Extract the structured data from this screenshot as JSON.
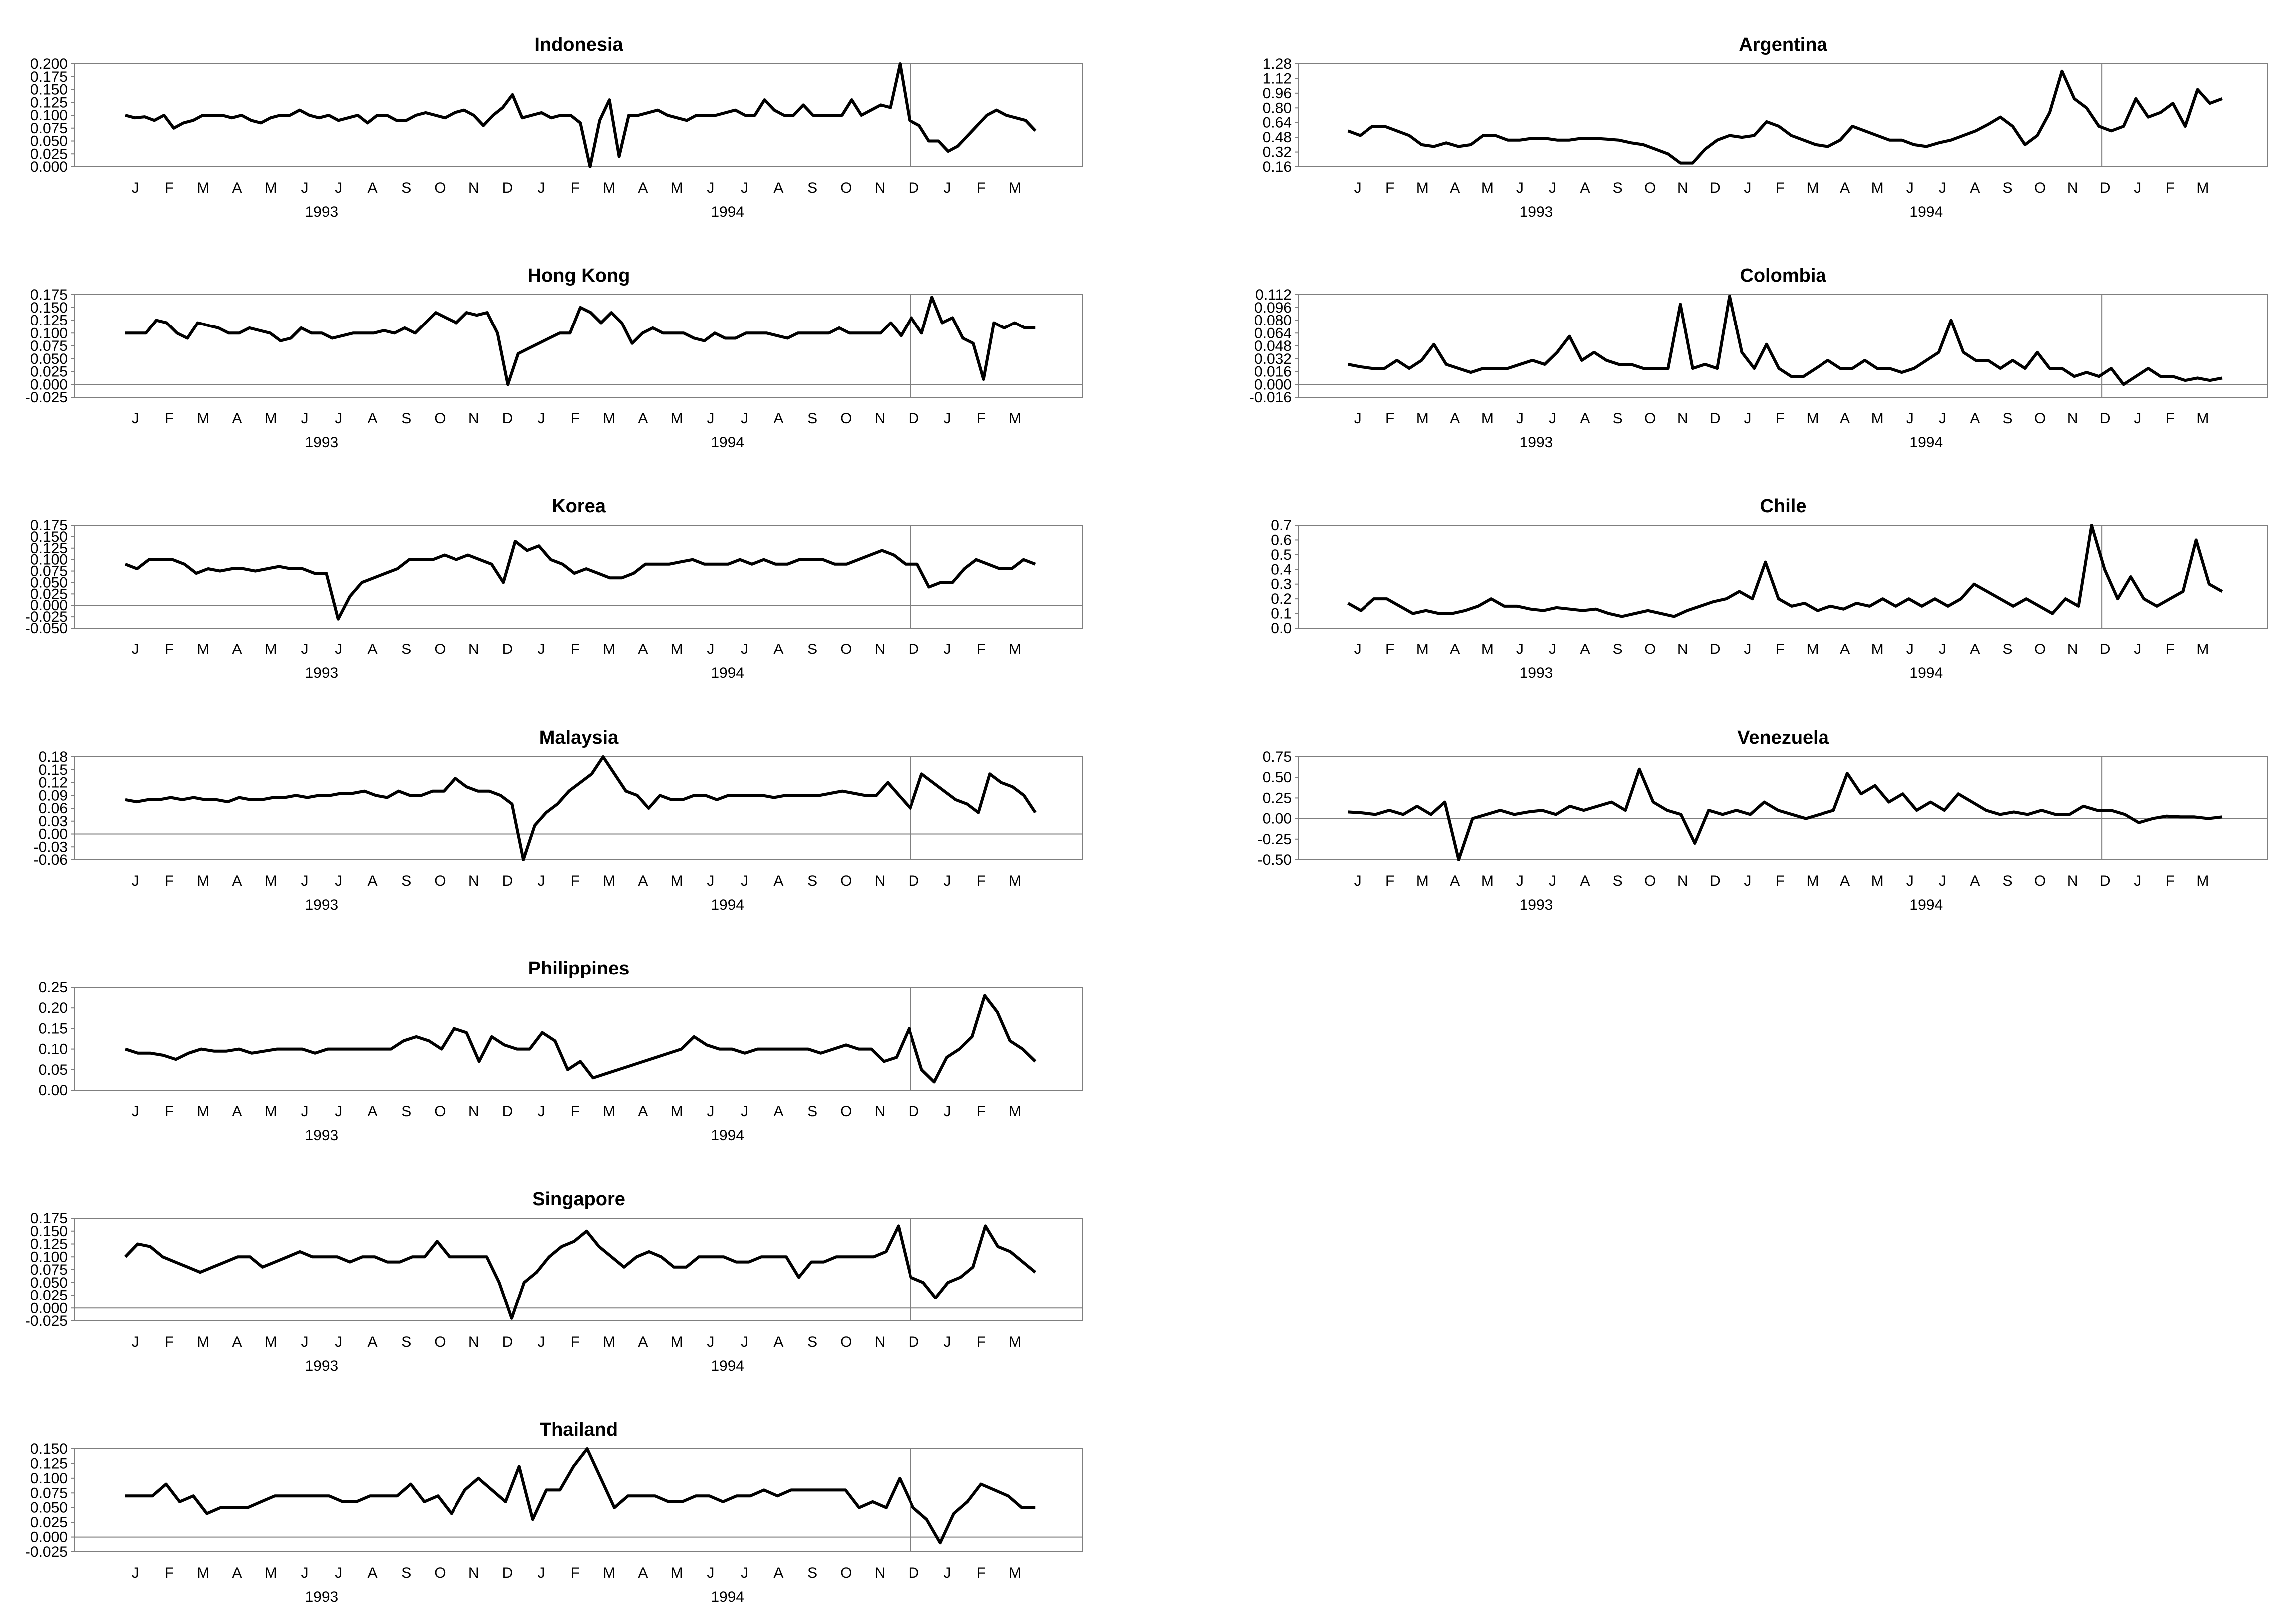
{
  "chart_data": [
    {
      "type": "line",
      "title": "Indonesia",
      "ylim": [
        0,
        0.2
      ],
      "yticks": [
        "0.000",
        "0.025",
        "0.050",
        "0.075",
        "0.100",
        "0.125",
        "0.150",
        "0.175",
        "0.200"
      ],
      "months": [
        "J",
        "F",
        "M",
        "A",
        "M",
        "J",
        "J",
        "A",
        "S",
        "O",
        "N",
        "D",
        "J",
        "F",
        "M",
        "A",
        "M",
        "J",
        "J",
        "A",
        "S",
        "O",
        "N",
        "D",
        "J",
        "F",
        "M"
      ],
      "years": [
        "1993",
        "1994"
      ],
      "values": [
        0.1,
        0.095,
        0.097,
        0.09,
        0.1,
        0.075,
        0.085,
        0.09,
        0.1,
        0.1,
        0.1,
        0.095,
        0.1,
        0.09,
        0.085,
        0.095,
        0.1,
        0.1,
        0.11,
        0.1,
        0.095,
        0.1,
        0.09,
        0.095,
        0.1,
        0.085,
        0.1,
        0.1,
        0.09,
        0.09,
        0.1,
        0.105,
        0.1,
        0.095,
        0.105,
        0.11,
        0.1,
        0.08,
        0.1,
        0.115,
        0.14,
        0.095,
        0.1,
        0.105,
        0.095,
        0.1,
        0.1,
        0.085,
        0.0,
        0.09,
        0.13,
        0.02,
        0.1,
        0.1,
        0.105,
        0.11,
        0.1,
        0.095,
        0.09,
        0.1,
        0.1,
        0.1,
        0.105,
        0.11,
        0.1,
        0.1,
        0.13,
        0.11,
        0.1,
        0.1,
        0.12,
        0.1,
        0.1,
        0.1,
        0.1,
        0.13,
        0.1,
        0.11,
        0.12,
        0.115,
        0.2,
        0.09,
        0.08,
        0.05,
        0.05,
        0.03,
        0.04,
        0.06,
        0.08,
        0.1,
        0.11,
        0.1,
        0.095,
        0.09,
        0.07
      ]
    },
    {
      "type": "line",
      "title": "Hong Kong",
      "ylim": [
        -0.025,
        0.175
      ],
      "yticks": [
        "-0.025",
        "0.000",
        "0.025",
        "0.050",
        "0.075",
        "0.100",
        "0.125",
        "0.150",
        "0.175"
      ],
      "months": [
        "J",
        "F",
        "M",
        "A",
        "M",
        "J",
        "J",
        "A",
        "S",
        "O",
        "N",
        "D",
        "J",
        "F",
        "M",
        "A",
        "M",
        "J",
        "J",
        "A",
        "S",
        "O",
        "N",
        "D",
        "J",
        "F",
        "M"
      ],
      "years": [
        "1993",
        "1994"
      ],
      "values": [
        0.1,
        0.1,
        0.1,
        0.125,
        0.12,
        0.1,
        0.09,
        0.12,
        0.115,
        0.11,
        0.1,
        0.1,
        0.11,
        0.105,
        0.1,
        0.085,
        0.09,
        0.11,
        0.1,
        0.1,
        0.09,
        0.095,
        0.1,
        0.1,
        0.1,
        0.105,
        0.1,
        0.11,
        0.1,
        0.12,
        0.14,
        0.13,
        0.12,
        0.14,
        0.135,
        0.14,
        0.1,
        0.0,
        0.06,
        0.07,
        0.08,
        0.09,
        0.1,
        0.1,
        0.15,
        0.14,
        0.12,
        0.14,
        0.12,
        0.08,
        0.1,
        0.11,
        0.1,
        0.1,
        0.1,
        0.09,
        0.085,
        0.1,
        0.09,
        0.09,
        0.1,
        0.1,
        0.1,
        0.095,
        0.09,
        0.1,
        0.1,
        0.1,
        0.1,
        0.11,
        0.1,
        0.1,
        0.1,
        0.1,
        0.12,
        0.095,
        0.13,
        0.1,
        0.17,
        0.12,
        0.13,
        0.09,
        0.08,
        0.01,
        0.12,
        0.11,
        0.12,
        0.11,
        0.11
      ]
    },
    {
      "type": "line",
      "title": "Korea",
      "ylim": [
        -0.05,
        0.175
      ],
      "yticks": [
        "-0.050",
        "-0.025",
        "0.000",
        "0.025",
        "0.050",
        "0.075",
        "0.100",
        "0.125",
        "0.150",
        "0.175"
      ],
      "months": [
        "J",
        "F",
        "M",
        "A",
        "M",
        "J",
        "J",
        "A",
        "S",
        "O",
        "N",
        "D",
        "J",
        "F",
        "M",
        "A",
        "M",
        "J",
        "J",
        "A",
        "S",
        "O",
        "N",
        "D",
        "J",
        "F",
        "M"
      ],
      "years": [
        "1993",
        "1994"
      ],
      "values": [
        0.09,
        0.08,
        0.1,
        0.1,
        0.1,
        0.09,
        0.07,
        0.08,
        0.075,
        0.08,
        0.08,
        0.075,
        0.08,
        0.085,
        0.08,
        0.08,
        0.07,
        0.07,
        -0.03,
        0.02,
        0.05,
        0.06,
        0.07,
        0.08,
        0.1,
        0.1,
        0.1,
        0.11,
        0.1,
        0.11,
        0.1,
        0.09,
        0.05,
        0.14,
        0.12,
        0.13,
        0.1,
        0.09,
        0.07,
        0.08,
        0.07,
        0.06,
        0.06,
        0.07,
        0.09,
        0.09,
        0.09,
        0.095,
        0.1,
        0.09,
        0.09,
        0.09,
        0.1,
        0.09,
        0.1,
        0.09,
        0.09,
        0.1,
        0.1,
        0.1,
        0.09,
        0.09,
        0.1,
        0.11,
        0.12,
        0.11,
        0.09,
        0.09,
        0.04,
        0.05,
        0.05,
        0.08,
        0.1,
        0.09,
        0.08,
        0.08,
        0.1,
        0.09
      ]
    },
    {
      "type": "line",
      "title": "Malaysia",
      "ylim": [
        -0.06,
        0.18
      ],
      "yticks": [
        "-0.06",
        "-0.03",
        "0.00",
        "0.03",
        "0.06",
        "0.09",
        "0.12",
        "0.15",
        "0.18"
      ],
      "months": [
        "J",
        "F",
        "M",
        "A",
        "M",
        "J",
        "J",
        "A",
        "S",
        "O",
        "N",
        "D",
        "J",
        "F",
        "M",
        "A",
        "M",
        "J",
        "J",
        "A",
        "S",
        "O",
        "N",
        "D",
        "J",
        "F",
        "M"
      ],
      "years": [
        "1993",
        "1994"
      ],
      "values": [
        0.08,
        0.075,
        0.08,
        0.08,
        0.085,
        0.08,
        0.085,
        0.08,
        0.08,
        0.075,
        0.085,
        0.08,
        0.08,
        0.085,
        0.085,
        0.09,
        0.085,
        0.09,
        0.09,
        0.095,
        0.095,
        0.1,
        0.09,
        0.085,
        0.1,
        0.09,
        0.09,
        0.1,
        0.1,
        0.13,
        0.11,
        0.1,
        0.1,
        0.09,
        0.07,
        -0.06,
        0.02,
        0.05,
        0.07,
        0.1,
        0.12,
        0.14,
        0.18,
        0.14,
        0.1,
        0.09,
        0.06,
        0.09,
        0.08,
        0.08,
        0.09,
        0.09,
        0.08,
        0.09,
        0.09,
        0.09,
        0.09,
        0.085,
        0.09,
        0.09,
        0.09,
        0.09,
        0.095,
        0.1,
        0.095,
        0.09,
        0.09,
        0.12,
        0.09,
        0.06,
        0.14,
        0.12,
        0.1,
        0.08,
        0.07,
        0.05,
        0.14,
        0.12,
        0.11,
        0.09,
        0.05
      ]
    },
    {
      "type": "line",
      "title": "Philippines",
      "ylim": [
        0,
        0.25
      ],
      "yticks": [
        "0.00",
        "0.05",
        "0.10",
        "0.15",
        "0.20",
        "0.25"
      ],
      "months": [
        "J",
        "F",
        "M",
        "A",
        "M",
        "J",
        "J",
        "A",
        "S",
        "O",
        "N",
        "D",
        "J",
        "F",
        "M",
        "A",
        "M",
        "J",
        "J",
        "A",
        "S",
        "O",
        "N",
        "D",
        "J",
        "F",
        "M"
      ],
      "years": [
        "1993",
        "1994"
      ],
      "values": [
        0.1,
        0.09,
        0.09,
        0.085,
        0.075,
        0.09,
        0.1,
        0.095,
        0.095,
        0.1,
        0.09,
        0.095,
        0.1,
        0.1,
        0.1,
        0.09,
        0.1,
        0.1,
        0.1,
        0.1,
        0.1,
        0.1,
        0.12,
        0.13,
        0.12,
        0.1,
        0.15,
        0.14,
        0.07,
        0.13,
        0.11,
        0.1,
        0.1,
        0.14,
        0.12,
        0.05,
        0.07,
        0.03,
        0.04,
        0.05,
        0.06,
        0.07,
        0.08,
        0.09,
        0.1,
        0.13,
        0.11,
        0.1,
        0.1,
        0.09,
        0.1,
        0.1,
        0.1,
        0.1,
        0.1,
        0.09,
        0.1,
        0.11,
        0.1,
        0.1,
        0.07,
        0.08,
        0.15,
        0.05,
        0.02,
        0.08,
        0.1,
        0.13,
        0.23,
        0.19,
        0.12,
        0.1,
        0.07
      ]
    },
    {
      "type": "line",
      "title": "Singapore",
      "ylim": [
        -0.025,
        0.175
      ],
      "yticks": [
        "-0.025",
        "0.000",
        "0.025",
        "0.050",
        "0.075",
        "0.100",
        "0.125",
        "0.150",
        "0.175"
      ],
      "months": [
        "J",
        "F",
        "M",
        "A",
        "M",
        "J",
        "J",
        "A",
        "S",
        "O",
        "N",
        "D",
        "J",
        "F",
        "M",
        "A",
        "M",
        "J",
        "J",
        "A",
        "S",
        "O",
        "N",
        "D",
        "J",
        "F",
        "M"
      ],
      "years": [
        "1993",
        "1994"
      ],
      "values": [
        0.1,
        0.125,
        0.12,
        0.1,
        0.09,
        0.08,
        0.07,
        0.08,
        0.09,
        0.1,
        0.1,
        0.08,
        0.09,
        0.1,
        0.11,
        0.1,
        0.1,
        0.1,
        0.09,
        0.1,
        0.1,
        0.09,
        0.09,
        0.1,
        0.1,
        0.13,
        0.1,
        0.1,
        0.1,
        0.1,
        0.05,
        -0.02,
        0.05,
        0.07,
        0.1,
        0.12,
        0.13,
        0.15,
        0.12,
        0.1,
        0.08,
        0.1,
        0.11,
        0.1,
        0.08,
        0.08,
        0.1,
        0.1,
        0.1,
        0.09,
        0.09,
        0.1,
        0.1,
        0.1,
        0.06,
        0.09,
        0.09,
        0.1,
        0.1,
        0.1,
        0.1,
        0.11,
        0.16,
        0.06,
        0.05,
        0.02,
        0.05,
        0.06,
        0.08,
        0.16,
        0.12,
        0.11,
        0.09,
        0.07
      ]
    },
    {
      "type": "line",
      "title": "Thailand",
      "ylim": [
        -0.025,
        0.15
      ],
      "yticks": [
        "-0.025",
        "0.000",
        "0.025",
        "0.050",
        "0.075",
        "0.100",
        "0.125",
        "0.150"
      ],
      "months": [
        "J",
        "F",
        "M",
        "A",
        "M",
        "J",
        "J",
        "A",
        "S",
        "O",
        "N",
        "D",
        "J",
        "F",
        "M",
        "A",
        "M",
        "J",
        "J",
        "A",
        "S",
        "O",
        "N",
        "D",
        "J",
        "F",
        "M"
      ],
      "years": [
        "1993",
        "1994"
      ],
      "values": [
        0.07,
        0.07,
        0.07,
        0.09,
        0.06,
        0.07,
        0.04,
        0.05,
        0.05,
        0.05,
        0.06,
        0.07,
        0.07,
        0.07,
        0.07,
        0.07,
        0.06,
        0.06,
        0.07,
        0.07,
        0.07,
        0.09,
        0.06,
        0.07,
        0.04,
        0.08,
        0.1,
        0.08,
        0.06,
        0.12,
        0.03,
        0.08,
        0.08,
        0.12,
        0.15,
        0.1,
        0.05,
        0.07,
        0.07,
        0.07,
        0.06,
        0.06,
        0.07,
        0.07,
        0.06,
        0.07,
        0.07,
        0.08,
        0.07,
        0.08,
        0.08,
        0.08,
        0.08,
        0.08,
        0.05,
        0.06,
        0.05,
        0.1,
        0.05,
        0.03,
        -0.01,
        0.04,
        0.06,
        0.09,
        0.08,
        0.07,
        0.05,
        0.05
      ]
    },
    {
      "type": "line",
      "title": "Argentina",
      "ylim": [
        0.16,
        1.28
      ],
      "yticks": [
        "0.16",
        "0.32",
        "0.48",
        "0.64",
        "0.80",
        "0.96",
        "1.12",
        "1.28"
      ],
      "months": [
        "J",
        "F",
        "M",
        "A",
        "M",
        "J",
        "J",
        "A",
        "S",
        "O",
        "N",
        "D",
        "J",
        "F",
        "M",
        "A",
        "M",
        "J",
        "J",
        "A",
        "S",
        "O",
        "N",
        "D",
        "J",
        "F",
        "M"
      ],
      "years": [
        "1993",
        "1994"
      ],
      "values": [
        0.55,
        0.5,
        0.6,
        0.6,
        0.55,
        0.5,
        0.4,
        0.38,
        0.42,
        0.38,
        0.4,
        0.5,
        0.5,
        0.45,
        0.45,
        0.47,
        0.47,
        0.45,
        0.45,
        0.47,
        0.47,
        0.46,
        0.45,
        0.42,
        0.4,
        0.35,
        0.3,
        0.2,
        0.2,
        0.35,
        0.45,
        0.5,
        0.48,
        0.5,
        0.65,
        0.6,
        0.5,
        0.45,
        0.4,
        0.38,
        0.45,
        0.6,
        0.55,
        0.5,
        0.45,
        0.45,
        0.4,
        0.38,
        0.42,
        0.45,
        0.5,
        0.55,
        0.62,
        0.7,
        0.6,
        0.4,
        0.5,
        0.75,
        1.2,
        0.9,
        0.8,
        0.6,
        0.55,
        0.6,
        0.9,
        0.7,
        0.75,
        0.85,
        0.6,
        1.0,
        0.85,
        0.9
      ]
    },
    {
      "type": "line",
      "title": "Colombia",
      "ylim": [
        -0.016,
        0.112
      ],
      "yticks": [
        "-0.016",
        "0.000",
        "0.016",
        "0.032",
        "0.048",
        "0.064",
        "0.080",
        "0.096",
        "0.112"
      ],
      "months": [
        "J",
        "F",
        "M",
        "A",
        "M",
        "J",
        "J",
        "A",
        "S",
        "O",
        "N",
        "D",
        "J",
        "F",
        "M",
        "A",
        "M",
        "J",
        "J",
        "A",
        "S",
        "O",
        "N",
        "D",
        "J",
        "F",
        "M"
      ],
      "years": [
        "1993",
        "1994"
      ],
      "values": [
        0.025,
        0.022,
        0.02,
        0.02,
        0.03,
        0.02,
        0.03,
        0.05,
        0.025,
        0.02,
        0.015,
        0.02,
        0.02,
        0.02,
        0.025,
        0.03,
        0.025,
        0.04,
        0.06,
        0.03,
        0.04,
        0.03,
        0.025,
        0.025,
        0.02,
        0.02,
        0.02,
        0.1,
        0.02,
        0.025,
        0.02,
        0.11,
        0.04,
        0.02,
        0.05,
        0.02,
        0.01,
        0.01,
        0.02,
        0.03,
        0.02,
        0.02,
        0.03,
        0.02,
        0.02,
        0.015,
        0.02,
        0.03,
        0.04,
        0.08,
        0.04,
        0.03,
        0.03,
        0.02,
        0.03,
        0.02,
        0.04,
        0.02,
        0.02,
        0.01,
        0.015,
        0.01,
        0.02,
        0.0,
        0.01,
        0.02,
        0.01,
        0.01,
        0.005,
        0.008,
        0.005,
        0.008
      ]
    },
    {
      "type": "line",
      "title": "Chile",
      "ylim": [
        0,
        0.7
      ],
      "yticks": [
        "0.0",
        "0.1",
        "0.2",
        "0.3",
        "0.4",
        "0.5",
        "0.6",
        "0.7"
      ],
      "months": [
        "J",
        "F",
        "M",
        "A",
        "M",
        "J",
        "J",
        "A",
        "S",
        "O",
        "N",
        "D",
        "J",
        "F",
        "M",
        "A",
        "M",
        "J",
        "J",
        "A",
        "S",
        "O",
        "N",
        "D",
        "J",
        "F",
        "M"
      ],
      "years": [
        "1993",
        "1994"
      ],
      "values": [
        0.17,
        0.12,
        0.2,
        0.2,
        0.15,
        0.1,
        0.12,
        0.1,
        0.1,
        0.12,
        0.15,
        0.2,
        0.15,
        0.15,
        0.13,
        0.12,
        0.14,
        0.13,
        0.12,
        0.13,
        0.1,
        0.08,
        0.1,
        0.12,
        0.1,
        0.08,
        0.12,
        0.15,
        0.18,
        0.2,
        0.25,
        0.2,
        0.45,
        0.2,
        0.15,
        0.17,
        0.12,
        0.15,
        0.13,
        0.17,
        0.15,
        0.2,
        0.15,
        0.2,
        0.15,
        0.2,
        0.15,
        0.2,
        0.3,
        0.25,
        0.2,
        0.15,
        0.2,
        0.15,
        0.1,
        0.2,
        0.15,
        0.7,
        0.4,
        0.2,
        0.35,
        0.2,
        0.15,
        0.2,
        0.25,
        0.6,
        0.3,
        0.25
      ]
    },
    {
      "type": "line",
      "title": "Venezuela",
      "ylim": [
        -0.5,
        0.75
      ],
      "yticks": [
        "-0.50",
        "-0.25",
        "0.00",
        "0.25",
        "0.50",
        "0.75"
      ],
      "months": [
        "J",
        "F",
        "M",
        "A",
        "M",
        "J",
        "J",
        "A",
        "S",
        "O",
        "N",
        "D",
        "J",
        "F",
        "M",
        "A",
        "M",
        "J",
        "J",
        "A",
        "S",
        "O",
        "N",
        "D",
        "J",
        "F",
        "M"
      ],
      "years": [
        "1993",
        "1994"
      ],
      "values": [
        0.08,
        0.07,
        0.05,
        0.1,
        0.05,
        0.15,
        0.05,
        0.2,
        -0.5,
        0.0,
        0.05,
        0.1,
        0.05,
        0.08,
        0.1,
        0.05,
        0.15,
        0.1,
        0.15,
        0.2,
        0.1,
        0.6,
        0.2,
        0.1,
        0.05,
        -0.3,
        0.1,
        0.05,
        0.1,
        0.05,
        0.2,
        0.1,
        0.05,
        0.0,
        0.05,
        0.1,
        0.55,
        0.3,
        0.4,
        0.2,
        0.3,
        0.1,
        0.2,
        0.1,
        0.3,
        0.2,
        0.1,
        0.05,
        0.08,
        0.05,
        0.1,
        0.05,
        0.05,
        0.15,
        0.1,
        0.1,
        0.05,
        -0.05,
        0.0,
        0.03,
        0.02,
        0.02,
        0.0,
        0.02
      ]
    }
  ]
}
